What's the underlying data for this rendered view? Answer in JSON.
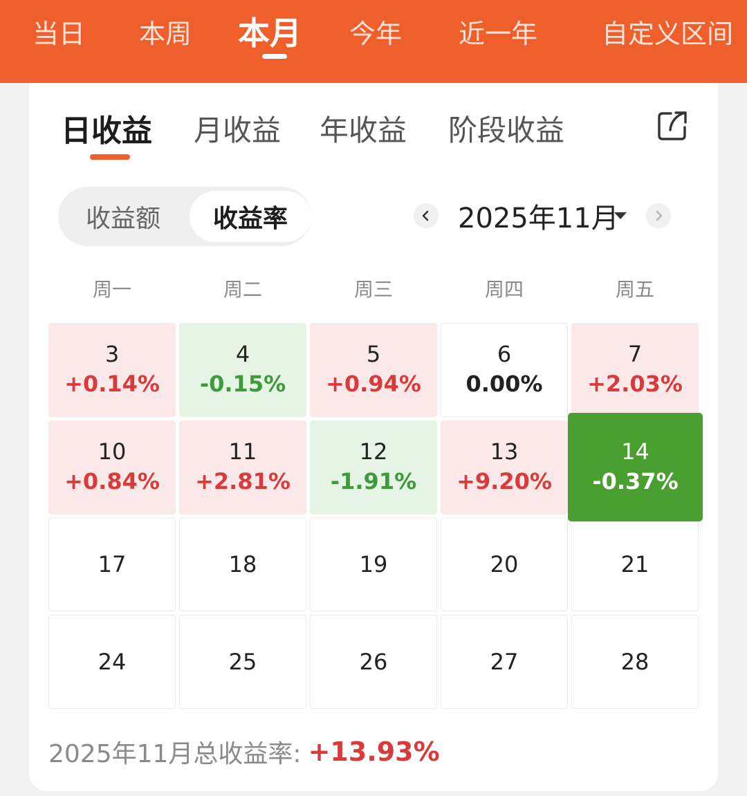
{
  "period_tabs": [
    "当日",
    "本周",
    "本月",
    "今年",
    "近一年",
    "自定义区间"
  ],
  "active_period": "本月",
  "return_tabs": [
    "日收益",
    "月收益",
    "年收益",
    "阶段收益"
  ],
  "active_return_tab": "日收益",
  "share_icon": "share-icon",
  "toggle": {
    "options": [
      "收益额",
      "收益率"
    ],
    "active": "收益率"
  },
  "month_picker": {
    "label": "2025年11月",
    "prev_icon": "chevron-left-icon",
    "next_icon": "chevron-right-icon",
    "dropdown_icon": "caret-down-icon"
  },
  "weekdays": [
    "周一",
    "周二",
    "周三",
    "周四",
    "周五"
  ],
  "weeks": [
    [
      {
        "day": "3",
        "value": "+0.14%",
        "trend": "up"
      },
      {
        "day": "4",
        "value": "-0.15%",
        "trend": "down"
      },
      {
        "day": "5",
        "value": "+0.94%",
        "trend": "up"
      },
      {
        "day": "6",
        "value": "0.00%",
        "trend": "flat"
      },
      {
        "day": "7",
        "value": "+2.03%",
        "trend": "up"
      }
    ],
    [
      {
        "day": "10",
        "value": "+0.84%",
        "trend": "up"
      },
      {
        "day": "11",
        "value": "+2.81%",
        "trend": "up"
      },
      {
        "day": "12",
        "value": "-1.91%",
        "trend": "down"
      },
      {
        "day": "13",
        "value": "+9.20%",
        "trend": "up"
      },
      {
        "day": "14",
        "value": "-0.37%",
        "trend": "today"
      }
    ],
    [
      {
        "day": "17",
        "value": "",
        "trend": "none"
      },
      {
        "day": "18",
        "value": "",
        "trend": "none"
      },
      {
        "day": "19",
        "value": "",
        "trend": "none"
      },
      {
        "day": "20",
        "value": "",
        "trend": "none"
      },
      {
        "day": "21",
        "value": "",
        "trend": "none"
      }
    ],
    [
      {
        "day": "24",
        "value": "",
        "trend": "none"
      },
      {
        "day": "25",
        "value": "",
        "trend": "none"
      },
      {
        "day": "26",
        "value": "",
        "trend": "none"
      },
      {
        "day": "27",
        "value": "",
        "trend": "none"
      },
      {
        "day": "28",
        "value": "",
        "trend": "none"
      }
    ]
  ],
  "summary": {
    "label": "2025年11月总收益率:",
    "value": "+13.93%"
  },
  "colors": {
    "brand": "#ee5f2b",
    "up": "#d93a3a",
    "down": "#3e9a3a",
    "today_bg": "#49a030"
  }
}
